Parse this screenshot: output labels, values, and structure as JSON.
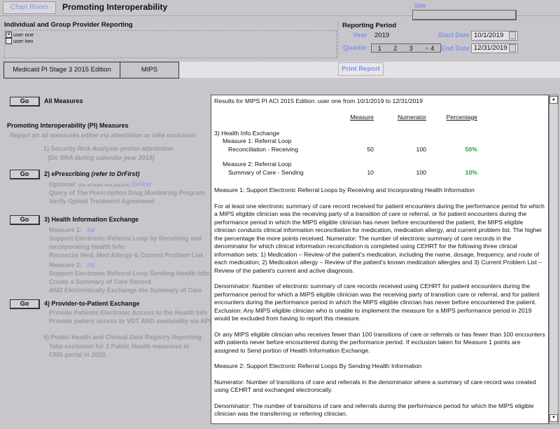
{
  "header": {
    "chart_room_label": "Chart Room",
    "title": "Promoting Interoperability",
    "site_label": "Site",
    "site_value": ""
  },
  "provider": {
    "title": "Individual and Group Provider Reporting",
    "users": [
      {
        "label": "user one",
        "checked": true
      },
      {
        "label": "user two",
        "checked": false
      }
    ]
  },
  "period": {
    "title": "Reporting Period",
    "year_label": "Year",
    "year": "2019",
    "quarter_label": "Quarter",
    "quarters": [
      "1",
      "2",
      "3",
      "4"
    ],
    "selected_quarter": "4",
    "start_label": "Start Date",
    "start": "10/1/2019",
    "end_label": "End Date",
    "end": "12/31/2019"
  },
  "tabs": [
    "Medicaid PI Stage 3 2015 Edition",
    "MIPS"
  ],
  "print_label": "Print Report",
  "left": {
    "go_label": "Go",
    "all_measures": "All Measures",
    "pi_title": "Promoting Interoperability (PI) Measures",
    "pi_subtitle": "Report on all measures either via attestation or take exclusion",
    "m1": {
      "title": "1) Security Risk Analysis yes/no attestation",
      "note": "(Do SRA during calendar year 2019)"
    },
    "m2": {
      "title": "2) ePrescribing",
      "title_note": "(refer to DrFirst)",
      "optional": "Optional:",
      "optional_note": "(for at least one patient)",
      "link": "DrFirst",
      "lines": [
        "Query of The Prescription Drug Monitoring Program",
        "Verify Opioid Treatment Agreement"
      ]
    },
    "m3": {
      "title": "3) Health Information Exchange",
      "measure1_label": "Measure 1:",
      "measure2_label": "Measure 2:",
      "link": "list",
      "measure1_lines": [
        "Support Electronic Referral Loop by Receiving and",
        "Incorporating Health Info:",
        "Reconcile Med, Med Allergy & Current Problem List"
      ],
      "measure2_lines": [
        "Support Electronic Referral Loop Sending Health Info:",
        "Create a Summary of Care Record",
        "AND Electronically Exchange the Summary of Care"
      ]
    },
    "m4": {
      "title": "4) Provider-to-Patient Exchange",
      "lines": [
        "Provide Patients Electronic Access to the Health Info",
        "Provide patient access to VDT  AND availability via API"
      ]
    },
    "m5": {
      "title": "5) Public Health and Clinical Data Registry Reporting",
      "lines": [
        "Take exclusion for 2 Public Health measures in",
        "CMS portal in 2020."
      ]
    }
  },
  "report": {
    "heading": "Results for MIPS PI ACI  2015 Edition: user one  from 10/1/2019 to 12/31/2019",
    "columns": [
      "Measure",
      "Numerator",
      "Percentage"
    ],
    "section": "3) Health Info Exchange",
    "rows": [
      {
        "line1": "Measure 1: Referral Loop",
        "line2": "Reconciliation - Receiving",
        "measure": "50",
        "numerator": "100",
        "percentage": "50%"
      },
      {
        "line1": "Measure 2: Referral Loop",
        "line2": "Summary of Care - Sending",
        "measure": "10",
        "numerator": "100",
        "percentage": "10%"
      }
    ],
    "paragraphs": [
      "Measure 1: Support Electronic Referral Loops by Receiving and Incorporating Health Information",
      "For at least one electronic summary of care record received for patient encounters during the performance period for which a MIPS eligible clinician was the receiving party of a transition of care or referral, or for patient encounters during the performance period in which the MIPS eligible clinician has never before encountered the patient, the MIPS eligible clinician conducts clinical information reconciliation for medication, medication allergy, and current problem list. The higher the percentage the more points received. Numerator: The number of electronic summary of care records in the denominator for which clinical information reconciliation is completed using CEHRT for the following three clinical information sets: 1) Medication – Review of the patient's medication, including the name, dosage, frequency, and route of each medication; 2) Medication allergy – Review of the patient's known medication allergies and 3) Current Problem List – Review of the patient's current and active diagnosis.",
      "Denominator: Number of electronic summary of care records received using CEHRT for patient encounters during the performance period for which a MIPS eligible clinician was the receiving party of transition care or referral, and for patient encounters during the performance period in which the MIPS eligible clinician has never before encountered the patient. Exclusion: Any MIPS eligible clinician who is unable to implement the measure for a MIPS performance period in 2019 would be excluded from having to report this measure.",
      "Or any MIPS eligible clinician who receives fewer than 100 transitions of care or referrals or has fewer than 100 encounters with patients never before encountered during the performance period. If exclusion taken for Measure 1 points are assigned to Send portion of Health Information Exchange.",
      "Measure 2: Support Electronic Referral Loops By Sending Health Information",
      "Numerator: Number of transitions of care and referrals in the denominator where a summary of care record was created using CEHRT and exchanged electronically.",
      "Denominator: The number of transitions of care and referrals during the performance period for which the MIPS eligible clinician was the transferring or referring clinician."
    ]
  },
  "colors": {
    "accent_blue": "#7d96e8",
    "percentage_green": "#2f9a2f",
    "background": "#c8c5cb"
  }
}
